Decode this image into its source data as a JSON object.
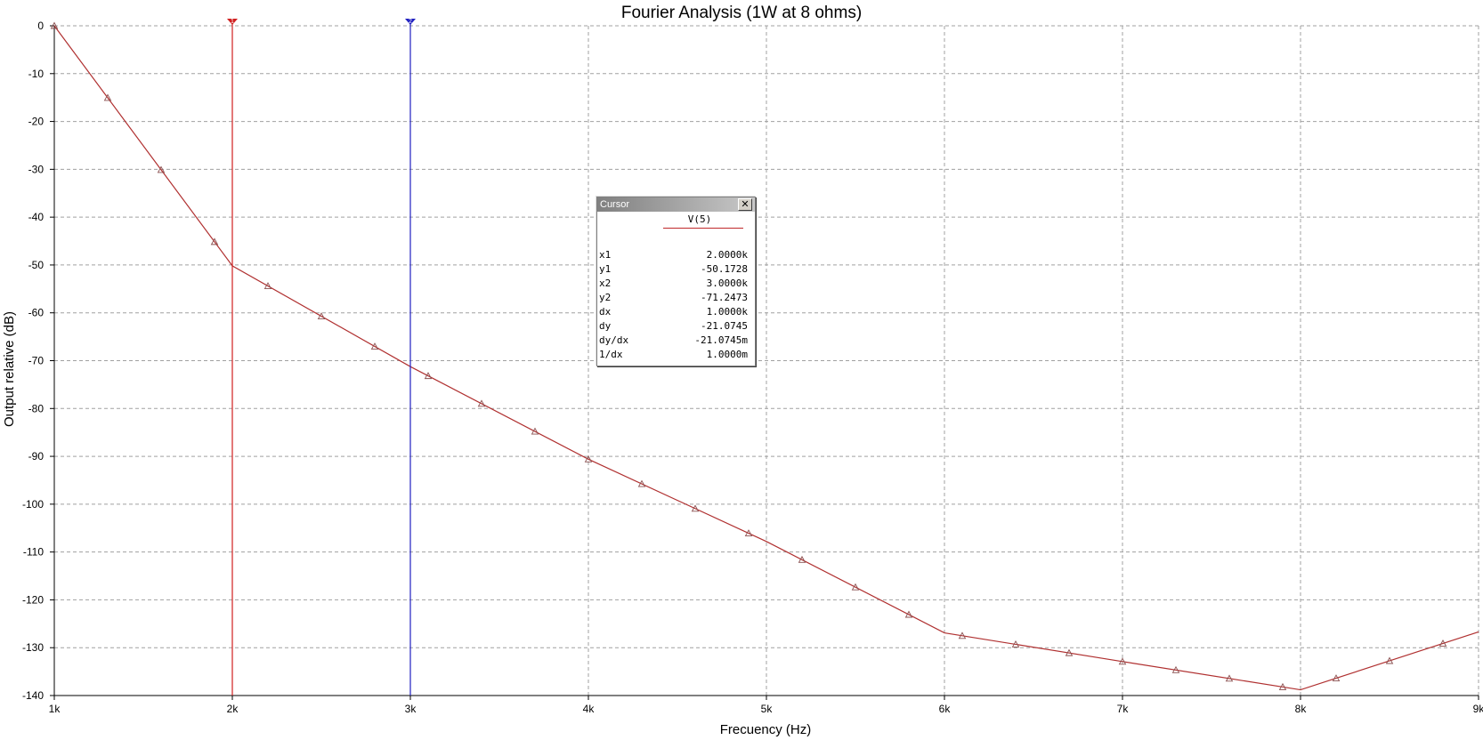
{
  "chart_data": {
    "type": "line",
    "title": "Fourier Analysis (1W at 8 ohms)",
    "xlabel": "Frecuency (Hz)",
    "ylabel": "Output relative (dB)",
    "xlim": [
      1000,
      9000
    ],
    "ylim": [
      -140,
      0
    ],
    "x_ticks": [
      1000,
      2000,
      3000,
      4000,
      5000,
      6000,
      7000,
      8000,
      9000
    ],
    "x_tick_labels": [
      "1k",
      "2k",
      "3k",
      "4k",
      "5k",
      "6k",
      "7k",
      "8k",
      "9k"
    ],
    "y_ticks": [
      0,
      -10,
      -20,
      -30,
      -40,
      -50,
      -60,
      -70,
      -80,
      -90,
      -100,
      -110,
      -120,
      -130,
      -140
    ],
    "y_tick_labels": [
      "0",
      "-10",
      "-20",
      "-30",
      "-40",
      "-50",
      "-60",
      "-70",
      "-80",
      "-90",
      "-100",
      "-110",
      "-120",
      "-130",
      "-140"
    ],
    "grid": true,
    "series": [
      {
        "name": "V(5)",
        "color": "#b03030",
        "x": [
          1000,
          2000,
          3000,
          4000,
          5000,
          6000,
          7000,
          8000,
          9000
        ],
        "values": [
          0,
          -50.1728,
          -71.2473,
          -90.6,
          -107.8,
          -126.9,
          -132.9,
          -138.8,
          -126.7
        ]
      }
    ],
    "cursors": [
      {
        "label": "1",
        "x": 2000,
        "color": "#d02020"
      },
      {
        "label": "2",
        "x": 3000,
        "color": "#2020c0"
      }
    ]
  },
  "cursor_window": {
    "title": "Cursor",
    "series_name": "V(5)",
    "rows": [
      {
        "key": "x1",
        "value": "2.0000k"
      },
      {
        "key": "y1",
        "value": "-50.1728"
      },
      {
        "key": "x2",
        "value": "3.0000k"
      },
      {
        "key": "y2",
        "value": "-71.2473"
      },
      {
        "key": "dx",
        "value": "1.0000k"
      },
      {
        "key": "dy",
        "value": "-21.0745"
      },
      {
        "key": "dy/dx",
        "value": "-21.0745m"
      },
      {
        "key": "1/dx",
        "value": "1.0000m"
      }
    ]
  },
  "colors": {
    "grid": "#a0a0a0",
    "axis": "#000000",
    "background": "#ffffff"
  }
}
